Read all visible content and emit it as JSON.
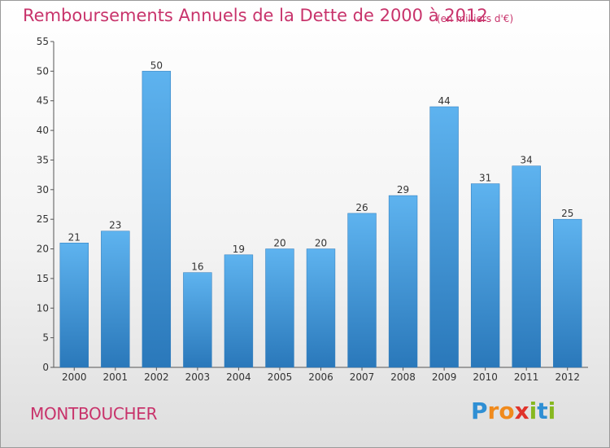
{
  "chart_data": {
    "type": "bar",
    "title": "Remboursements Annuels de la Dette de 2000 à 2012",
    "subtitle": "(en milliers d'€)",
    "categories": [
      "2000",
      "2001",
      "2002",
      "2003",
      "2004",
      "2005",
      "2006",
      "2007",
      "2008",
      "2009",
      "2010",
      "2011",
      "2012"
    ],
    "values": [
      21,
      23,
      50,
      16,
      19,
      20,
      20,
      26,
      29,
      44,
      31,
      34,
      25
    ],
    "ylim": [
      0,
      55
    ],
    "yticks": [
      0,
      5,
      10,
      15,
      20,
      25,
      30,
      35,
      40,
      45,
      50,
      55
    ],
    "grid": false,
    "bar_color": "#4a9fdd",
    "bar_color_dark": "#2a78ba"
  },
  "commune": "MONTBOUCHER",
  "logo": {
    "letters": [
      "P",
      "r",
      "o",
      "x",
      "i",
      "t",
      "i"
    ]
  }
}
